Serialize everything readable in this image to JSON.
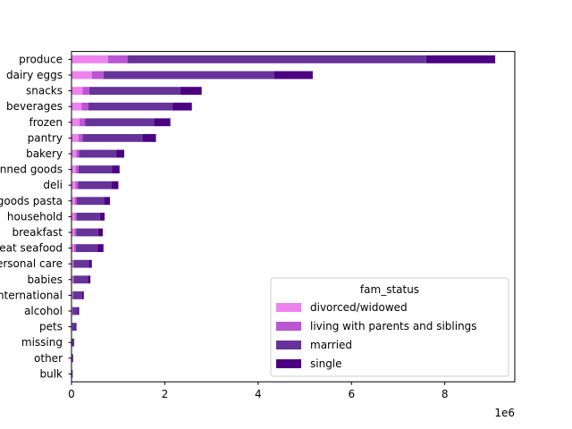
{
  "chart_data": {
    "type": "bar",
    "orientation": "horizontal",
    "stacked": true,
    "categories": [
      "produce",
      "dairy eggs",
      "snacks",
      "beverages",
      "frozen",
      "pantry",
      "bakery",
      "canned goods",
      "deli",
      "dry goods pasta",
      "household",
      "breakfast",
      "meat seafood",
      "personal care",
      "babies",
      "international",
      "alcohol",
      "pets",
      "missing",
      "other",
      "bulk"
    ],
    "series": [
      {
        "name": "divorced/widowed",
        "color": "#ee82ee",
        "values": [
          780000,
          440000,
          240000,
          220000,
          170000,
          150000,
          100000,
          90000,
          85000,
          70000,
          65000,
          60000,
          55000,
          30000,
          30000,
          22000,
          15000,
          10000,
          6000,
          3000,
          2000
        ]
      },
      {
        "name": "living with parents and siblings",
        "color": "#ba55d3",
        "values": [
          420000,
          250000,
          140000,
          140000,
          120000,
          90000,
          60000,
          60000,
          60000,
          45000,
          45000,
          40000,
          40000,
          15000,
          15000,
          12000,
          8000,
          6000,
          3000,
          2000,
          1000
        ]
      },
      {
        "name": "married",
        "color": "#663399",
        "values": [
          6400000,
          3650000,
          1950000,
          1800000,
          1480000,
          1280000,
          800000,
          720000,
          710000,
          580000,
          500000,
          470000,
          470000,
          330000,
          310000,
          190000,
          110000,
          70000,
          40000,
          25000,
          20000
        ]
      },
      {
        "name": "single",
        "color": "#4b0082",
        "values": [
          1480000,
          830000,
          460000,
          420000,
          350000,
          290000,
          170000,
          160000,
          150000,
          130000,
          100000,
          100000,
          120000,
          60000,
          50000,
          40000,
          30000,
          20000,
          10000,
          6000,
          3000
        ]
      }
    ],
    "x_ticks": [
      0,
      2,
      4,
      6,
      8
    ],
    "x_tick_labels": [
      "0",
      "2",
      "4",
      "6",
      "8"
    ],
    "x_offset_label": "1e6",
    "xlim": [
      0,
      9500000
    ],
    "title": "",
    "xlabel": "",
    "ylabel": "",
    "legend": {
      "title": "fam_status",
      "placement": "lower-right"
    },
    "grid": false
  }
}
